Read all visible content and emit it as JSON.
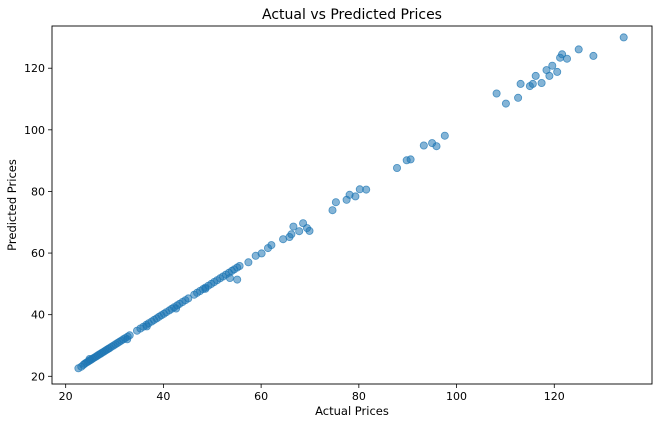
{
  "chart_data": {
    "type": "scatter",
    "title": "Actual vs Predicted Prices",
    "xlabel": "Actual Prices",
    "ylabel": "Predicted Prices",
    "xlim": [
      17.2,
      140
    ],
    "ylim": [
      17.5,
      133.7
    ],
    "xticks": [
      20,
      40,
      60,
      80,
      100,
      120
    ],
    "yticks": [
      20,
      40,
      60,
      80,
      100,
      120
    ],
    "grid": false,
    "color": "#1f77b4",
    "opacity": 0.55,
    "x": [
      22.6,
      23.2,
      23.6,
      23.9,
      24.2,
      24.5,
      24.8,
      25.1,
      25.4,
      25.7,
      26.0,
      26.3,
      26.6,
      26.9,
      27.2,
      27.5,
      27.8,
      28.1,
      28.4,
      28.7,
      29.0,
      29.4,
      29.8,
      30.2,
      30.6,
      31.0,
      31.4,
      31.8,
      32.2,
      32.7,
      33.1,
      34.6,
      35.3,
      35.9,
      36.5,
      37.0,
      37.6,
      38.1,
      38.6,
      39.1,
      39.6,
      40.1,
      40.6,
      41.2,
      41.7,
      42.2,
      42.8,
      43.3,
      43.9,
      44.5,
      45.1,
      46.3,
      46.9,
      47.5,
      48.1,
      48.6,
      49.2,
      49.8,
      50.4,
      51.0,
      51.6,
      52.2,
      52.8,
      53.4,
      54.0,
      54.5,
      55.1,
      55.6,
      57.4,
      58.9,
      60.1,
      61.4,
      62.1,
      64.5,
      65.8,
      66.2,
      66.6,
      67.8,
      68.6,
      69.4,
      69.9,
      74.6,
      75.3,
      77.5,
      78.1,
      79.3,
      80.2,
      81.5,
      87.8,
      89.8,
      90.6,
      93.3,
      95.0,
      95.9,
      97.6,
      108.2,
      110.1,
      112.6,
      113.1,
      115.0,
      115.6,
      116.2,
      117.4,
      118.4,
      119.0,
      119.6,
      120.6,
      121.2,
      121.6,
      122.6,
      125.0,
      128.0,
      134.2,
      55.1,
      53.6,
      42.6,
      48.6,
      32.6,
      36.6,
      24.9
    ],
    "y": [
      22.6,
      23.1,
      23.7,
      24.1,
      24.4,
      24.7,
      25.0,
      25.3,
      25.6,
      25.9,
      26.2,
      26.5,
      26.8,
      27.1,
      27.4,
      27.7,
      28.0,
      28.3,
      28.6,
      28.9,
      29.2,
      29.6,
      30.0,
      30.4,
      30.8,
      31.2,
      31.6,
      32.0,
      32.4,
      32.9,
      33.3,
      34.8,
      35.5,
      36.1,
      36.7,
      37.2,
      37.8,
      38.3,
      38.8,
      39.3,
      39.8,
      40.3,
      40.8,
      41.4,
      41.9,
      42.4,
      43.0,
      43.5,
      44.1,
      44.7,
      45.3,
      46.5,
      47.1,
      47.7,
      48.3,
      48.8,
      49.4,
      50.0,
      50.6,
      51.2,
      51.8,
      52.4,
      53.0,
      53.6,
      54.2,
      54.7,
      55.3,
      55.8,
      57.0,
      59.1,
      59.9,
      61.6,
      62.6,
      64.5,
      65.2,
      66.1,
      68.6,
      67.1,
      69.7,
      68.1,
      67.2,
      73.9,
      76.5,
      77.3,
      78.9,
      78.4,
      80.7,
      80.6,
      87.6,
      90.1,
      90.4,
      94.9,
      95.7,
      94.7,
      98.1,
      111.8,
      108.5,
      110.4,
      114.9,
      114.2,
      114.9,
      117.5,
      115.2,
      119.4,
      117.5,
      120.8,
      118.8,
      123.4,
      124.5,
      123.1,
      126.1,
      124.0,
      130.0,
      51.4,
      51.9,
      42.0,
      48.4,
      32.0,
      36.2,
      25.6
    ]
  }
}
